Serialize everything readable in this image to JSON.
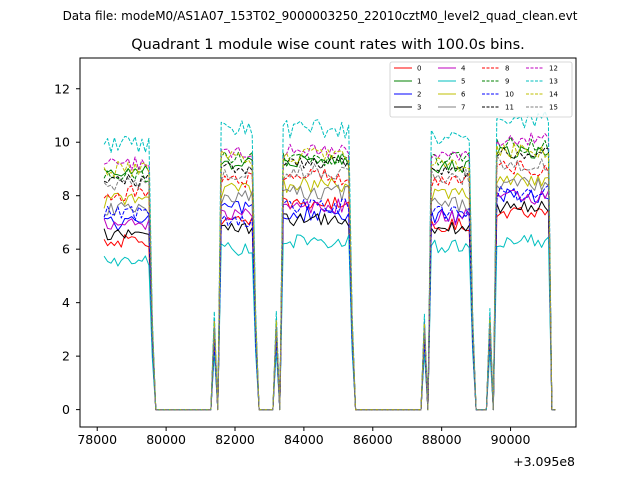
{
  "figure": {
    "suptitle": "Data file: modeM0/AS1A07_153T02_9000003250_22010cztM0_level2_quad_clean.evt",
    "offset_label": "+3.095e8"
  },
  "chart_data": {
    "type": "line",
    "title": "Quadrant 1 module wise count rates with 100.0s bins.",
    "xlabel": "",
    "ylabel": "",
    "x_offset": 309500000,
    "xlim": [
      77500,
      91900
    ],
    "ylim": [
      -0.65,
      13.15
    ],
    "xticks": [
      78000,
      80000,
      82000,
      84000,
      86000,
      88000,
      90000
    ],
    "xtick_labels": [
      "78000",
      "80000",
      "82000",
      "84000",
      "86000",
      "88000",
      "90000"
    ],
    "yticks": [
      0,
      2,
      4,
      6,
      8,
      10,
      12
    ],
    "ytick_labels": [
      "0",
      "2",
      "4",
      "6",
      "8",
      "10",
      "12"
    ],
    "legend_position": "top-right",
    "x_start": 78200,
    "x_step": 100,
    "segments": [
      {
        "on_start": 78200,
        "on_end": 79500,
        "drop_end": 79700
      },
      {
        "rise_start": 81400,
        "on_start": 81600,
        "on_end": 82500,
        "drop_end": 82700
      },
      {
        "rise_start": 83200,
        "on_start": 83400,
        "on_end": 85300,
        "drop_end": 85500
      },
      {
        "rise_start": 87500,
        "on_start": 87700,
        "on_end": 88800,
        "drop_end": 89000
      },
      {
        "rise_start": 89400,
        "on_start": 89600,
        "on_end": 91100,
        "drop_end": 91200
      }
    ],
    "transition_fraction": 0.35,
    "series": [
      {
        "name": "0",
        "color": "#ff0000",
        "dash": "solid",
        "levels": [
          6.3,
          7.0,
          7.7,
          6.9,
          7.4
        ],
        "noise": 0.25
      },
      {
        "name": "1",
        "color": "#008000",
        "dash": "solid",
        "levels": [
          8.9,
          9.2,
          9.3,
          9.1,
          9.6
        ],
        "noise": 0.25
      },
      {
        "name": "2",
        "color": "#0000ff",
        "dash": "solid",
        "levels": [
          7.0,
          7.6,
          7.3,
          7.2,
          8.0
        ],
        "noise": 0.3
      },
      {
        "name": "3",
        "color": "#000000",
        "dash": "solid",
        "levels": [
          6.6,
          6.8,
          7.1,
          6.8,
          7.6
        ],
        "noise": 0.25
      },
      {
        "name": "4",
        "color": "#bf00bf",
        "dash": "solid",
        "levels": [
          6.9,
          7.3,
          7.6,
          7.2,
          7.9
        ],
        "noise": 0.3
      },
      {
        "name": "5",
        "color": "#00bfbf",
        "dash": "solid",
        "levels": [
          5.5,
          6.0,
          6.3,
          6.1,
          6.3
        ],
        "noise": 0.25
      },
      {
        "name": "6",
        "color": "#bfbf00",
        "dash": "solid",
        "levels": [
          7.8,
          8.2,
          8.4,
          8.0,
          8.6
        ],
        "noise": 0.3
      },
      {
        "name": "7",
        "color": "#808080",
        "dash": "solid",
        "levels": [
          7.5,
          7.9,
          8.1,
          7.7,
          8.4
        ],
        "noise": 0.3
      },
      {
        "name": "8",
        "color": "#ff0000",
        "dash": "dashed",
        "levels": [
          8.1,
          8.6,
          8.7,
          8.5,
          9.0
        ],
        "noise": 0.3
      },
      {
        "name": "9",
        "color": "#008000",
        "dash": "dashed",
        "levels": [
          8.8,
          9.5,
          9.3,
          9.4,
          9.9
        ],
        "noise": 0.3
      },
      {
        "name": "10",
        "color": "#0000ff",
        "dash": "dashed",
        "levels": [
          7.3,
          7.1,
          7.6,
          7.4,
          8.1
        ],
        "noise": 0.3
      },
      {
        "name": "11",
        "color": "#000000",
        "dash": "dashed",
        "levels": [
          8.6,
          9.0,
          9.2,
          8.9,
          9.6
        ],
        "noise": 0.25
      },
      {
        "name": "12",
        "color": "#bf00bf",
        "dash": "dashed",
        "levels": [
          9.2,
          9.6,
          9.7,
          9.5,
          10.1
        ],
        "noise": 0.25
      },
      {
        "name": "13",
        "color": "#00bfbf",
        "dash": "dashed",
        "levels": [
          9.9,
          10.5,
          10.5,
          10.2,
          10.8
        ],
        "noise": 0.35
      },
      {
        "name": "14",
        "color": "#bfbf00",
        "dash": "dashed",
        "levels": [
          9.0,
          9.4,
          9.5,
          9.2,
          9.7
        ],
        "noise": 0.3
      },
      {
        "name": "15",
        "color": "#808080",
        "dash": "dashed",
        "levels": [
          8.4,
          8.8,
          8.9,
          8.7,
          9.2
        ],
        "noise": 0.3
      }
    ]
  }
}
